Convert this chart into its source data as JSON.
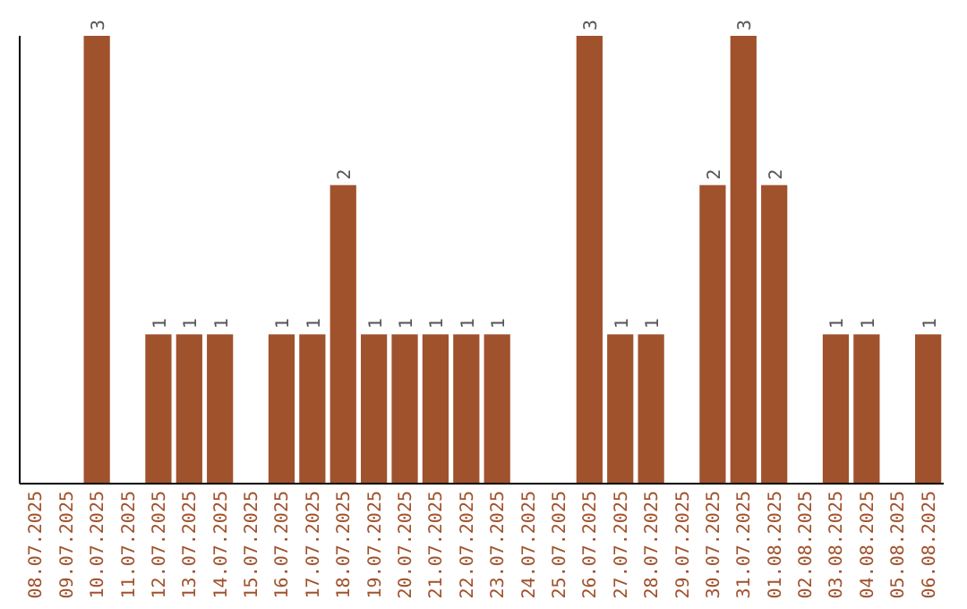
{
  "chart_data": {
    "type": "bar",
    "categories": [
      "08.07.2025",
      "09.07.2025",
      "10.07.2025",
      "11.07.2025",
      "12.07.2025",
      "13.07.2025",
      "14.07.2025",
      "15.07.2025",
      "16.07.2025",
      "17.07.2025",
      "18.07.2025",
      "19.07.2025",
      "20.07.2025",
      "21.07.2025",
      "22.07.2025",
      "23.07.2025",
      "24.07.2025",
      "25.07.2025",
      "26.07.2025",
      "27.07.2025",
      "28.07.2025",
      "29.07.2025",
      "30.07.2025",
      "31.07.2025",
      "01.08.2025",
      "02.08.2025",
      "03.08.2025",
      "04.08.2025",
      "05.08.2025",
      "06.08.2025"
    ],
    "values": [
      0,
      0,
      3,
      0,
      1,
      1,
      1,
      0,
      1,
      1,
      2,
      1,
      1,
      1,
      1,
      1,
      0,
      0,
      3,
      1,
      1,
      0,
      2,
      3,
      2,
      0,
      1,
      1,
      0,
      1
    ],
    "value_labels": [
      null,
      null,
      "3",
      null,
      "1",
      "1",
      "1",
      null,
      "1",
      "1",
      "2",
      "1",
      "1",
      "1",
      "1",
      "1",
      null,
      null,
      "3",
      "1",
      "1",
      null,
      "2",
      "3",
      "2",
      null,
      "1",
      "1",
      null,
      "1"
    ],
    "color": "#a0522d",
    "ylim": [
      0,
      3
    ],
    "tick_labels": "x",
    "grid": false
  }
}
